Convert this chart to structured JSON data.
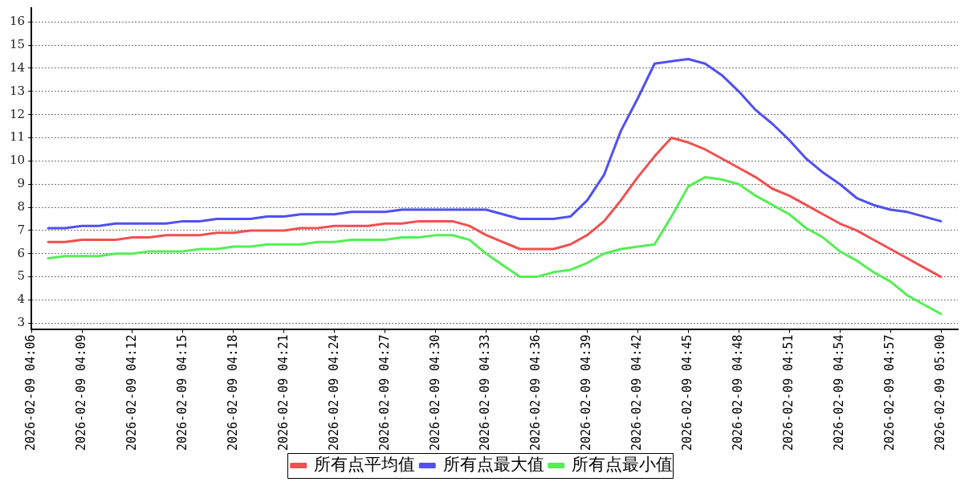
{
  "chart_data": {
    "type": "line",
    "x": [
      "2026-02-09T04:07",
      "2026-02-09T04:08",
      "2026-02-09T04:09",
      "2026-02-09T04:10",
      "2026-02-09T04:11",
      "2026-02-09T04:12",
      "2026-02-09T04:13",
      "2026-02-09T04:14",
      "2026-02-09T04:15",
      "2026-02-09T04:16",
      "2026-02-09T04:17",
      "2026-02-09T04:18",
      "2026-02-09T04:19",
      "2026-02-09T04:20",
      "2026-02-09T04:21",
      "2026-02-09T04:22",
      "2026-02-09T04:23",
      "2026-02-09T04:24",
      "2026-02-09T04:25",
      "2026-02-09T04:26",
      "2026-02-09T04:27",
      "2026-02-09T04:28",
      "2026-02-09T04:29",
      "2026-02-09T04:30",
      "2026-02-09T04:31",
      "2026-02-09T04:32",
      "2026-02-09T04:33",
      "2026-02-09T04:34",
      "2026-02-09T04:35",
      "2026-02-09T04:36",
      "2026-02-09T04:37",
      "2026-02-09T04:38",
      "2026-02-09T04:39",
      "2026-02-09T04:40",
      "2026-02-09T04:41",
      "2026-02-09T04:42",
      "2026-02-09T04:43",
      "2026-02-09T04:44",
      "2026-02-09T04:45",
      "2026-02-09T04:46",
      "2026-02-09T04:47",
      "2026-02-09T04:48",
      "2026-02-09T04:49",
      "2026-02-09T04:50",
      "2026-02-09T04:51",
      "2026-02-09T04:52",
      "2026-02-09T04:53",
      "2026-02-09T04:54",
      "2026-02-09T04:55",
      "2026-02-09T04:56",
      "2026-02-09T04:57",
      "2026-02-09T04:58",
      "2026-02-09T04:59",
      "2026-02-09T05:00"
    ],
    "series": [
      {
        "name": "所有点平均值",
        "color": "#f05050",
        "values": [
          6.5,
          6.5,
          6.6,
          6.6,
          6.6,
          6.7,
          6.7,
          6.8,
          6.8,
          6.8,
          6.9,
          6.9,
          7.0,
          7.0,
          7.0,
          7.1,
          7.1,
          7.2,
          7.2,
          7.2,
          7.3,
          7.3,
          7.4,
          7.4,
          7.4,
          7.2,
          6.8,
          6.5,
          6.2,
          6.2,
          6.2,
          6.4,
          6.8,
          7.4,
          8.3,
          9.3,
          10.2,
          11.0,
          10.8,
          10.5,
          10.1,
          9.7,
          9.3,
          8.8,
          8.5,
          8.1,
          7.7,
          7.3,
          7.0,
          6.6,
          6.2,
          5.8,
          5.4,
          5.0
        ]
      },
      {
        "name": "所有点最大值",
        "color": "#5050f0",
        "values": [
          7.1,
          7.1,
          7.2,
          7.2,
          7.3,
          7.3,
          7.3,
          7.3,
          7.4,
          7.4,
          7.5,
          7.5,
          7.5,
          7.6,
          7.6,
          7.7,
          7.7,
          7.7,
          7.8,
          7.8,
          7.8,
          7.9,
          7.9,
          7.9,
          7.9,
          7.9,
          7.9,
          7.7,
          7.5,
          7.5,
          7.5,
          7.6,
          8.3,
          9.4,
          11.3,
          12.7,
          14.2,
          14.3,
          14.4,
          14.2,
          13.7,
          13.0,
          12.2,
          11.6,
          10.9,
          10.1,
          9.5,
          9.0,
          8.4,
          8.1,
          7.9,
          7.8,
          7.6,
          7.4
        ]
      },
      {
        "name": "所有点最小值",
        "color": "#55ee55",
        "values": [
          5.8,
          5.9,
          5.9,
          5.9,
          6.0,
          6.0,
          6.1,
          6.1,
          6.1,
          6.2,
          6.2,
          6.3,
          6.3,
          6.4,
          6.4,
          6.4,
          6.5,
          6.5,
          6.6,
          6.6,
          6.6,
          6.7,
          6.7,
          6.8,
          6.8,
          6.6,
          6.0,
          5.5,
          5.0,
          5.0,
          5.2,
          5.3,
          5.6,
          6.0,
          6.2,
          6.3,
          6.4,
          7.6,
          8.9,
          9.3,
          9.2,
          9.0,
          8.5,
          8.1,
          7.7,
          7.1,
          6.7,
          6.1,
          5.7,
          5.2,
          4.8,
          4.2,
          3.8,
          3.4
        ]
      }
    ],
    "xlim": [
      "2026-02-09T04:06",
      "2026-02-09T05:01"
    ],
    "xticks": [
      {
        "value": "2026-02-09T04:06",
        "label": "2026-02-09 04:06"
      },
      {
        "value": "2026-02-09T04:09",
        "label": "2026-02-09 04:09"
      },
      {
        "value": "2026-02-09T04:12",
        "label": "2026-02-09 04:12"
      },
      {
        "value": "2026-02-09T04:15",
        "label": "2026-02-09 04:15"
      },
      {
        "value": "2026-02-09T04:18",
        "label": "2026-02-09 04:18"
      },
      {
        "value": "2026-02-09T04:21",
        "label": "2026-02-09 04:21"
      },
      {
        "value": "2026-02-09T04:24",
        "label": "2026-02-09 04:24"
      },
      {
        "value": "2026-02-09T04:27",
        "label": "2026-02-09 04:27"
      },
      {
        "value": "2026-02-09T04:30",
        "label": "2026-02-09 04:30"
      },
      {
        "value": "2026-02-09T04:33",
        "label": "2026-02-09 04:33"
      },
      {
        "value": "2026-02-09T04:36",
        "label": "2026-02-09 04:36"
      },
      {
        "value": "2026-02-09T04:39",
        "label": "2026-02-09 04:39"
      },
      {
        "value": "2026-02-09T04:42",
        "label": "2026-02-09 04:42"
      },
      {
        "value": "2026-02-09T04:45",
        "label": "2026-02-09 04:45"
      },
      {
        "value": "2026-02-09T04:48",
        "label": "2026-02-09 04:48"
      },
      {
        "value": "2026-02-09T04:51",
        "label": "2026-02-09 04:51"
      },
      {
        "value": "2026-02-09T04:54",
        "label": "2026-02-09 04:54"
      },
      {
        "value": "2026-02-09T04:57",
        "label": "2026-02-09 04:57"
      },
      {
        "value": "2026-02-09T05:00",
        "label": "2026-02-09 05:00"
      }
    ],
    "ylim": [
      2.75,
      16.6
    ],
    "yticks": [
      3,
      4,
      5,
      6,
      7,
      8,
      9,
      10,
      11,
      12,
      13,
      14,
      15,
      16
    ],
    "grid": "y",
    "legend": "bottom"
  }
}
